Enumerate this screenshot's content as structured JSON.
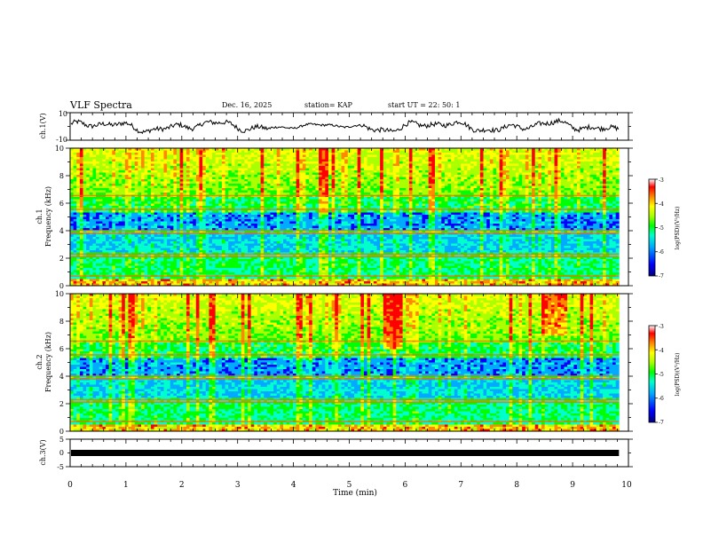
{
  "header": {
    "title": "VLF Spectra",
    "date": "Dec. 16, 2025",
    "station": "station= KAP",
    "start_ut": "start  UT =   22: 50: 1"
  },
  "chart_data": {
    "type": "heatmap",
    "title": "VLF Spectra",
    "xlabel": "Time  (min)",
    "xlim": [
      0,
      10
    ],
    "x_ticks": [
      "0",
      "1",
      "2",
      "3",
      "4",
      "5",
      "6",
      "7",
      "8",
      "9",
      "10"
    ],
    "data_end_min": 9.83,
    "panels": [
      {
        "id": "ch1_waveform",
        "type": "line",
        "ylabel": "ch.1(V)",
        "ylim": [
          -10,
          10
        ],
        "y_ticks": [
          "10",
          "-10"
        ]
      },
      {
        "id": "ch1_spectrogram",
        "type": "heatmap",
        "ylabel_line1": "ch.1",
        "ylabel_line2": "Frequency  (kHz)",
        "ylim": [
          0,
          10
        ],
        "y_ticks": [
          "0",
          "2",
          "4",
          "6",
          "8",
          "10"
        ],
        "colorbar": {
          "label": "log(PSD)(V²/Hz)",
          "ticks": [
            "-3",
            "-4",
            "-5",
            "-6",
            "-7"
          ],
          "range": [
            -7,
            -3
          ]
        }
      },
      {
        "id": "ch2_spectrogram",
        "type": "heatmap",
        "ylabel_line1": "ch.2",
        "ylabel_line2": "Frequency  (kHz)",
        "ylim": [
          0,
          10
        ],
        "y_ticks": [
          "0",
          "2",
          "4",
          "6",
          "8",
          "10"
        ],
        "colorbar": {
          "label": "log(PSD)(V²/Hz)",
          "ticks": [
            "-3",
            "-4",
            "-5",
            "-6",
            "-7"
          ],
          "range": [
            -7,
            -3
          ]
        }
      },
      {
        "id": "ch3_waveform",
        "type": "line",
        "ylabel": "ch.3(V)",
        "ylim": [
          -5,
          5
        ],
        "y_ticks": [
          "5",
          "0",
          "-5"
        ],
        "level_v": 0
      }
    ]
  },
  "colors": {
    "colormap": [
      "#00007f",
      "#0000ff",
      "#00aaff",
      "#00ffcc",
      "#00ff00",
      "#aaff00",
      "#ffff00",
      "#ff8800",
      "#ff0000",
      "#ffffff"
    ]
  }
}
